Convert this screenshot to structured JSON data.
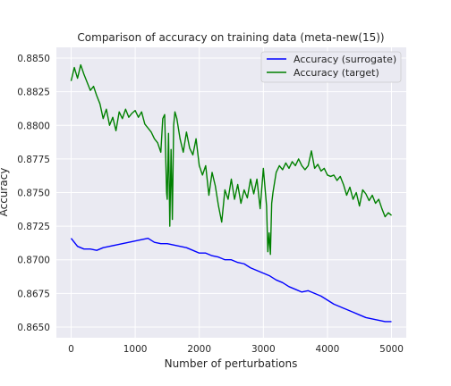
{
  "chart_data": {
    "type": "line",
    "title": "Comparison of accuracy on training data (meta-new(15))",
    "xlabel": "Number of perturbations",
    "ylabel": "Accuracy",
    "xlim": [
      -230,
      5230
    ],
    "ylim": [
      0.8642,
      0.8858
    ],
    "xticks": [
      0,
      1000,
      2000,
      3000,
      4000,
      5000
    ],
    "yticks": [
      0.865,
      0.8675,
      0.87,
      0.8725,
      0.875,
      0.8775,
      0.88,
      0.8825,
      0.885
    ],
    "ytick_labels": [
      "0.8650",
      "0.8675",
      "0.8700",
      "0.8725",
      "0.8750",
      "0.8775",
      "0.8800",
      "0.8825",
      "0.8850"
    ],
    "grid": true,
    "legend_position": "top-right",
    "background": "#eaeaf2",
    "series": [
      {
        "name": "Accuracy (surrogate)",
        "color": "#0000ff",
        "x": [
          0,
          100,
          200,
          300,
          400,
          500,
          600,
          700,
          800,
          900,
          1000,
          1100,
          1200,
          1300,
          1400,
          1500,
          1600,
          1700,
          1800,
          1900,
          2000,
          2100,
          2200,
          2300,
          2400,
          2500,
          2600,
          2700,
          2800,
          2900,
          3000,
          3100,
          3200,
          3300,
          3400,
          3500,
          3600,
          3700,
          3800,
          3900,
          4000,
          4100,
          4200,
          4300,
          4400,
          4500,
          4600,
          4700,
          4800,
          4900,
          5000
        ],
        "y": [
          0.8716,
          0.871,
          0.8708,
          0.8708,
          0.8707,
          0.8709,
          0.871,
          0.8711,
          0.8712,
          0.8713,
          0.8714,
          0.8715,
          0.8716,
          0.8713,
          0.8712,
          0.8712,
          0.8711,
          0.871,
          0.8709,
          0.8707,
          0.8705,
          0.8705,
          0.8703,
          0.8702,
          0.87,
          0.87,
          0.8698,
          0.8697,
          0.8694,
          0.8692,
          0.869,
          0.8688,
          0.8685,
          0.8683,
          0.868,
          0.8678,
          0.8676,
          0.8677,
          0.8675,
          0.8673,
          0.867,
          0.8667,
          0.8665,
          0.8663,
          0.8661,
          0.8659,
          0.8657,
          0.8656,
          0.8655,
          0.8654,
          0.8654
        ]
      },
      {
        "name": "Accuracy (target)",
        "color": "#008000",
        "x": [
          0,
          50,
          100,
          150,
          200,
          250,
          300,
          350,
          400,
          450,
          500,
          550,
          600,
          650,
          700,
          750,
          800,
          850,
          900,
          950,
          1000,
          1050,
          1100,
          1150,
          1200,
          1250,
          1300,
          1350,
          1400,
          1430,
          1460,
          1490,
          1500,
          1520,
          1540,
          1560,
          1580,
          1600,
          1620,
          1650,
          1700,
          1750,
          1800,
          1850,
          1900,
          1950,
          2000,
          2050,
          2100,
          2150,
          2200,
          2250,
          2300,
          2350,
          2400,
          2450,
          2500,
          2550,
          2600,
          2650,
          2700,
          2750,
          2800,
          2850,
          2900,
          2950,
          3000,
          3050,
          3070,
          3090,
          3110,
          3130,
          3150,
          3200,
          3250,
          3300,
          3350,
          3400,
          3450,
          3500,
          3550,
          3600,
          3650,
          3700,
          3750,
          3800,
          3850,
          3900,
          3950,
          4000,
          4050,
          4100,
          4150,
          4200,
          4250,
          4300,
          4350,
          4400,
          4450,
          4500,
          4550,
          4600,
          4650,
          4700,
          4750,
          4800,
          4850,
          4900,
          4950,
          5000
        ],
        "y": [
          0.8833,
          0.8843,
          0.8835,
          0.8845,
          0.8838,
          0.8832,
          0.8826,
          0.8829,
          0.8822,
          0.8816,
          0.8805,
          0.8812,
          0.88,
          0.8806,
          0.8796,
          0.881,
          0.8805,
          0.8812,
          0.8806,
          0.8809,
          0.8811,
          0.8806,
          0.881,
          0.8801,
          0.8798,
          0.8795,
          0.879,
          0.8787,
          0.878,
          0.8805,
          0.8808,
          0.875,
          0.8745,
          0.8794,
          0.8725,
          0.8782,
          0.873,
          0.88,
          0.881,
          0.8805,
          0.879,
          0.878,
          0.8795,
          0.8783,
          0.8778,
          0.879,
          0.877,
          0.8763,
          0.877,
          0.8748,
          0.8765,
          0.8755,
          0.874,
          0.8728,
          0.8752,
          0.8745,
          0.876,
          0.8745,
          0.8756,
          0.8742,
          0.8752,
          0.8746,
          0.876,
          0.8749,
          0.876,
          0.8738,
          0.8768,
          0.874,
          0.8706,
          0.872,
          0.8704,
          0.8742,
          0.875,
          0.8765,
          0.877,
          0.8767,
          0.8772,
          0.8768,
          0.8773,
          0.877,
          0.8775,
          0.877,
          0.8767,
          0.877,
          0.8781,
          0.8768,
          0.8771,
          0.8766,
          0.8768,
          0.8763,
          0.8762,
          0.8763,
          0.8759,
          0.8762,
          0.8756,
          0.8748,
          0.8754,
          0.8745,
          0.875,
          0.874,
          0.8752,
          0.8749,
          0.8744,
          0.8748,
          0.8742,
          0.8745,
          0.8738,
          0.8732,
          0.8735,
          0.8733
        ]
      }
    ]
  }
}
